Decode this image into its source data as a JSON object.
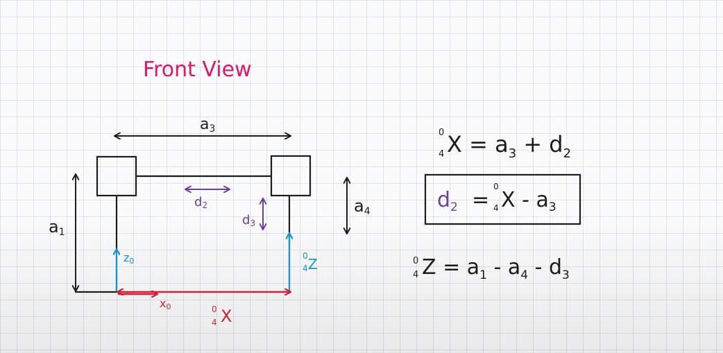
{
  "title": "Front View",
  "colors": {
    "title": "#e0166a",
    "ink": "#1c1c1c",
    "purple": "#6a3fa0",
    "cyan": "#1b92c9",
    "red": "#d01f36"
  },
  "labels": {
    "a3": "a",
    "a3_sub": "3",
    "a1": "a",
    "a1_sub": "1",
    "a4": "a",
    "a4_sub": "4",
    "d2": "d",
    "d2_sub": "2",
    "d3": "d",
    "d3_sub": "3",
    "z0": "z",
    "z0_sub": "0",
    "x0": "x",
    "x0_sub": "0",
    "z_frame": "Z",
    "z_frame_pre_sup": "0",
    "z_frame_pre_sub": "4",
    "x_frame": "X",
    "x_frame_pre_sup": "0",
    "x_frame_pre_sub": "4"
  },
  "equations": {
    "eq1": {
      "pre_sup": "0",
      "pre_sub": "4",
      "var": "X",
      "rhs_1": " = a",
      "rhs_1_sub": "3",
      "rhs_2": " + d",
      "rhs_2_sub": "2"
    },
    "eq2": {
      "lhs": "d",
      "lhs_sub": "2",
      "eq": " = ",
      "pre_sup": "0",
      "pre_sub": "4",
      "var": "X",
      "rhs": " - a",
      "rhs_sub": "3"
    },
    "eq3": {
      "pre_sup": "0",
      "pre_sub": "4",
      "var": "Z",
      "rhs_1": " = a",
      "rhs_1_sub": "1",
      "rhs_2": " - a",
      "rhs_2_sub": "4",
      "rhs_3": " - d",
      "rhs_3_sub": "3"
    }
  }
}
